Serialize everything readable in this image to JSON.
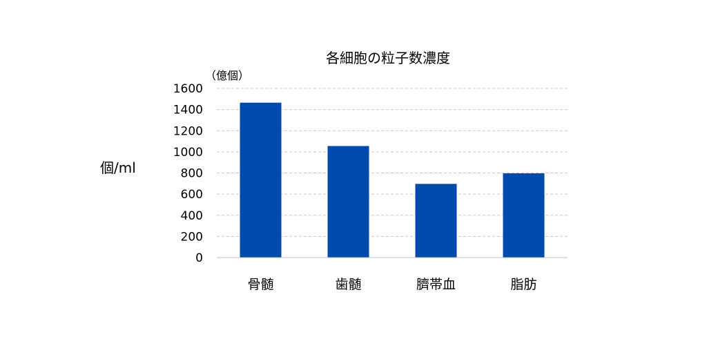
{
  "chart_data": {
    "type": "bar",
    "title": "各細胞の粒子数濃度",
    "unit_label": "（億個）",
    "ylabel": "個/ml",
    "xlabel": "",
    "categories": [
      "骨髄",
      "歯髄",
      "臍帯血",
      "脂肪"
    ],
    "values": [
      1465,
      1055,
      697,
      797
    ],
    "ylim": [
      0,
      1600
    ],
    "yticks": [
      0,
      200,
      400,
      600,
      800,
      1000,
      1200,
      1400,
      1600
    ],
    "grid": true,
    "legend": "none",
    "bar_color": "#0049AD",
    "grid_color": "#C9C9C9",
    "axis_color": "#BFBFBF"
  }
}
